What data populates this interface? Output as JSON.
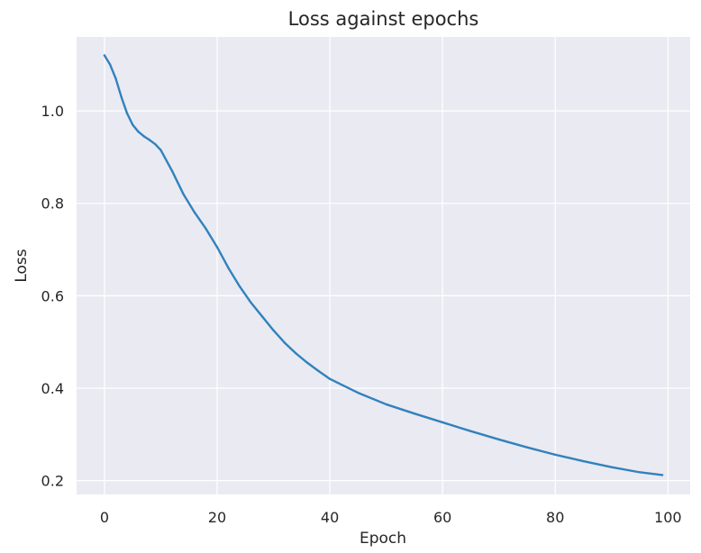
{
  "chart_data": {
    "type": "line",
    "title": "Loss against epochs",
    "xlabel": "Epoch",
    "ylabel": "Loss",
    "xlim": [
      -4.95,
      103.95
    ],
    "ylim": [
      0.17,
      1.16
    ],
    "xticks": [
      0,
      20,
      40,
      60,
      80,
      100
    ],
    "yticks": [
      0.2,
      0.4,
      0.6,
      0.8,
      1.0
    ],
    "xtick_labels": [
      "0",
      "20",
      "40",
      "60",
      "80",
      "100"
    ],
    "ytick_labels": [
      "0.2",
      "0.4",
      "0.6",
      "0.8",
      "1.0"
    ],
    "grid": true,
    "legend": false,
    "series": [
      {
        "color": "#3182bd",
        "x": [
          0,
          1,
          2,
          3,
          4,
          5,
          6,
          7,
          8,
          9,
          10,
          12,
          14,
          16,
          18,
          20,
          22,
          24,
          26,
          28,
          30,
          32,
          34,
          36,
          38,
          40,
          45,
          50,
          55,
          60,
          65,
          70,
          75,
          80,
          85,
          90,
          95,
          99
        ],
        "y": [
          1.12,
          1.1,
          1.07,
          1.03,
          0.995,
          0.97,
          0.955,
          0.945,
          0.937,
          0.928,
          0.915,
          0.87,
          0.82,
          0.78,
          0.745,
          0.705,
          0.66,
          0.62,
          0.585,
          0.555,
          0.525,
          0.498,
          0.475,
          0.455,
          0.437,
          0.42,
          0.39,
          0.365,
          0.345,
          0.326,
          0.307,
          0.289,
          0.272,
          0.256,
          0.242,
          0.229,
          0.218,
          0.212
        ]
      }
    ]
  }
}
